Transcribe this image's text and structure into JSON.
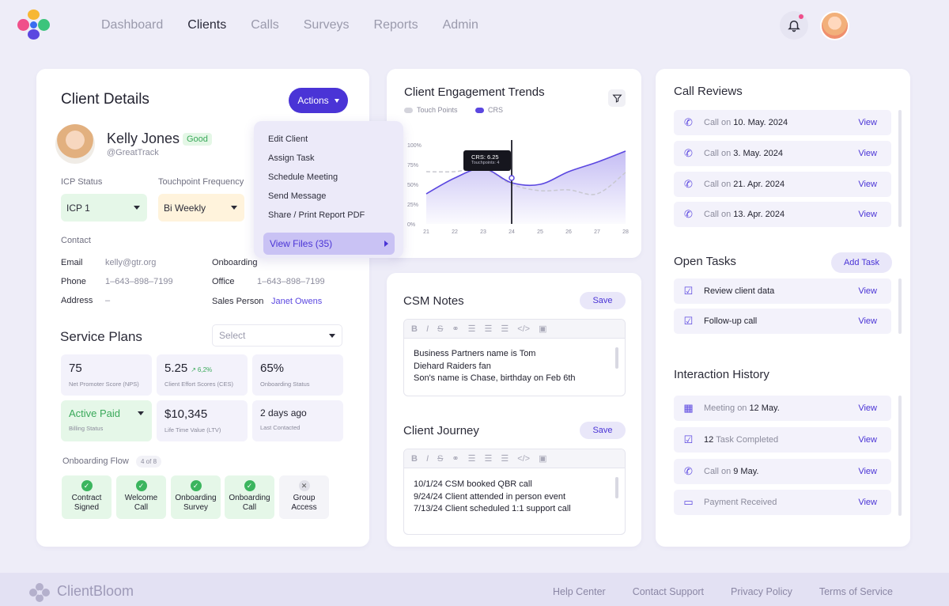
{
  "nav": {
    "items": [
      "Dashboard",
      "Clients",
      "Calls",
      "Surveys",
      "Reports",
      "Admin"
    ],
    "active": "Clients"
  },
  "colors": {
    "accent": "#4a34d6",
    "good": "#3aa95a",
    "background": "#eeedf8"
  },
  "client_details": {
    "title": "Client Details",
    "actions_label": "Actions",
    "name": "Kelly Jones",
    "status_badge": "Good",
    "handle": "@GreatTrack",
    "icp_status_label": "ICP Status",
    "icp_status_value": "ICP 1",
    "touchpoint_label": "Touchpoint Frequency",
    "touchpoint_value": "Bi Weekly",
    "contact_label": "Contact",
    "email_label": "Email",
    "email": "kelly@gtr.org",
    "phone_label": "Phone",
    "phone": "1–643–898–7199",
    "address_label": "Address",
    "address": "–",
    "onboarding_label": "Onboarding",
    "office_label": "Office",
    "office": "1–643–898–7199",
    "sales_label": "Sales Person",
    "sales_person": "Janet Owens"
  },
  "actions_menu": {
    "items": [
      "Edit Client",
      "Assign Task",
      "Schedule Meeting",
      "Send Message",
      "Share / Print Report PDF"
    ],
    "view_files": "View Files (35)"
  },
  "service_plans": {
    "title": "Service Plans",
    "select_placeholder": "Select",
    "stats": [
      {
        "value": "75",
        "label": "Net Promoter Score (NPS)"
      },
      {
        "value": "5.25",
        "delta": "6,2%",
        "label": "Client Effort Scores (CES)"
      },
      {
        "value": "65%",
        "label": "Onboarding Status"
      },
      {
        "value": "Active Paid",
        "label": "Billing Status"
      },
      {
        "value": "$10,345",
        "label": "Life Time Value (LTV)"
      },
      {
        "value": "2 days ago",
        "label": "Last Contacted"
      }
    ],
    "flow_label": "Onboarding Flow",
    "flow_count": "4 of 8",
    "steps": [
      {
        "line1": "Contract",
        "line2": "Signed"
      },
      {
        "line1": "Welcome",
        "line2": "Call"
      },
      {
        "line1": "Onboarding",
        "line2": "Survey"
      },
      {
        "line1": "Onboarding",
        "line2": "Call"
      },
      {
        "line1": "Group",
        "line2": "Access"
      }
    ]
  },
  "engagement": {
    "title": "Client Engagement Trends",
    "legend": [
      "Touch Points",
      "CRS"
    ],
    "tooltip_title": "CRS: 6.25",
    "tooltip_sub": "Touchpoints: 4",
    "y_ticks": [
      "100%",
      "75%",
      "50%",
      "25%",
      "0%"
    ],
    "x_ticks": [
      "21",
      "22",
      "23",
      "24",
      "25",
      "26",
      "27",
      "28"
    ]
  },
  "chart_data": {
    "type": "area",
    "x": [
      21,
      22,
      23,
      24,
      25,
      26,
      27,
      28
    ],
    "series": [
      {
        "name": "CRS",
        "values": [
          38,
          58,
          70,
          52,
          50,
          66,
          78,
          92
        ]
      },
      {
        "name": "Touch Points",
        "values": [
          66,
          66,
          70,
          50,
          42,
          43,
          38,
          65
        ]
      }
    ],
    "ylim": [
      0,
      100
    ],
    "yticks": [
      "0%",
      "25%",
      "50%",
      "75%",
      "100%"
    ],
    "highlight_x": 24,
    "legend_position": "top-left"
  },
  "csm_notes": {
    "title": "CSM Notes",
    "save_label": "Save",
    "lines": [
      "Business Partners name is Tom",
      "Diehard Raiders fan",
      "Son's name is Chase, birthday on Feb 6th"
    ]
  },
  "client_journey": {
    "title": "Client Journey",
    "save_label": "Save",
    "lines": [
      "10/1/24 CSM booked QBR call",
      "9/24/24 Client attended in person event",
      "7/13/24 Client scheduled 1:1 support call"
    ]
  },
  "call_reviews": {
    "title": "Call Reviews",
    "prefix": "Call on",
    "view_label": "View",
    "dates": [
      "10. May. 2024",
      "3. May. 2024",
      "21. Apr. 2024",
      "13. Apr. 2024"
    ]
  },
  "open_tasks": {
    "title": "Open Tasks",
    "add_label": "Add Task",
    "view_label": "View",
    "items": [
      "Review client data",
      "Follow-up call"
    ]
  },
  "interaction_history": {
    "title": "Interaction History",
    "view_label": "View",
    "items": [
      {
        "prefix": "Meeting on",
        "bold": "12 May.",
        "icon": "calendar-icon"
      },
      {
        "bold": "12",
        "suffix": "Task Completed",
        "icon": "task-icon"
      },
      {
        "prefix": "Call on",
        "bold": "9 May.",
        "icon": "phone-icon"
      },
      {
        "prefix": "Payment Received",
        "bold": "",
        "icon": "payment-icon"
      }
    ]
  },
  "footer": {
    "brand": "ClientBloom",
    "links": [
      "Help Center",
      "Contact Support",
      "Privacy Policy",
      "Terms of Service"
    ]
  }
}
